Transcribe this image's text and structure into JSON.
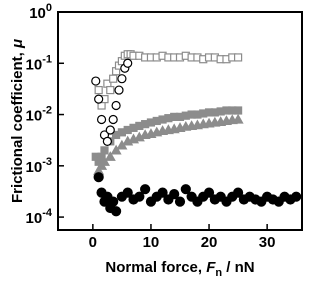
{
  "chart_data": {
    "type": "scatter",
    "log_y": true,
    "xlabel": {
      "text": "Normal force, ",
      "symbol": "F",
      "subscript": "n",
      "unit": " / nN"
    },
    "ylabel": {
      "text": "Frictional coefficient, ",
      "symbol": "μ"
    },
    "xlim": [
      -6,
      36
    ],
    "xticks": [
      0,
      10,
      20,
      30
    ],
    "ylim": [
      5.6e-05,
      1
    ],
    "yticks": [
      {
        "value": 1,
        "label": "10",
        "exponent": "0"
      },
      {
        "value": 0.1,
        "label": "10",
        "exponent": "-1"
      },
      {
        "value": 0.01,
        "label": "10",
        "exponent": "-2"
      },
      {
        "value": 0.001,
        "label": "10",
        "exponent": "-3"
      },
      {
        "value": 0.0001,
        "label": "10",
        "exponent": "-4"
      }
    ],
    "series": [
      {
        "marker": "square",
        "filled": true,
        "color": "#8c8c8c",
        "x": [
          0.5,
          1,
          1.5,
          2,
          3,
          4,
          5,
          6,
          7,
          8,
          9,
          10,
          11,
          12,
          13,
          14,
          15,
          16,
          17,
          18,
          19,
          20,
          21,
          22,
          23,
          24,
          25
        ],
        "values": [
          0.0015,
          0.0012,
          0.0015,
          0.002,
          0.003,
          0.004,
          0.0045,
          0.005,
          0.0055,
          0.006,
          0.0065,
          0.007,
          0.0075,
          0.008,
          0.0085,
          0.009,
          0.009,
          0.0095,
          0.01,
          0.01,
          0.0105,
          0.011,
          0.011,
          0.0115,
          0.012,
          0.012,
          0.012
        ]
      },
      {
        "marker": "triangle",
        "filled": true,
        "color": "#8c8c8c",
        "x": [
          1,
          1.5,
          2,
          3,
          4,
          5,
          6,
          7,
          8,
          9,
          10,
          11,
          12,
          13,
          14,
          15,
          16,
          17,
          18,
          19,
          20,
          21,
          22,
          23,
          24,
          25
        ],
        "values": [
          0.0008,
          0.001,
          0.0012,
          0.0015,
          0.002,
          0.0025,
          0.003,
          0.0033,
          0.0036,
          0.004,
          0.0042,
          0.0045,
          0.0048,
          0.005,
          0.0052,
          0.0055,
          0.0058,
          0.006,
          0.0062,
          0.0065,
          0.0067,
          0.007,
          0.0072,
          0.0075,
          0.0078,
          0.008
        ]
      },
      {
        "marker": "square",
        "filled": false,
        "color": "#8c8c8c",
        "x": [
          1,
          1.5,
          2,
          2.5,
          3,
          3.5,
          4,
          4.5,
          5,
          5.5,
          6,
          6.5,
          7,
          8,
          9,
          10,
          11,
          12,
          13,
          14,
          15,
          16,
          17,
          18,
          19,
          20,
          21,
          22,
          23,
          24,
          25
        ],
        "values": [
          0.03,
          0.015,
          0.02,
          0.04,
          0.03,
          0.05,
          0.07,
          0.09,
          0.11,
          0.14,
          0.15,
          0.15,
          0.14,
          0.14,
          0.13,
          0.13,
          0.13,
          0.14,
          0.13,
          0.13,
          0.13,
          0.14,
          0.13,
          0.13,
          0.12,
          0.13,
          0.13,
          0.12,
          0.12,
          0.13,
          0.13
        ]
      },
      {
        "marker": "circle",
        "filled": false,
        "color": "#000000",
        "x": [
          0.5,
          1,
          1.5,
          2,
          2.5,
          3,
          3.5,
          4,
          4.5,
          5,
          5.5,
          6
        ],
        "values": [
          0.045,
          0.02,
          0.008,
          0.004,
          0.003,
          0.005,
          0.008,
          0.015,
          0.03,
          0.05,
          0.08,
          0.1
        ]
      },
      {
        "marker": "circle",
        "filled": true,
        "color": "#000000",
        "x": [
          1,
          1.5,
          2,
          2.5,
          3,
          3.5,
          4,
          5,
          6,
          7,
          8,
          9,
          10,
          11,
          12,
          13,
          14,
          15,
          16,
          17,
          18,
          19,
          20,
          21,
          22,
          23,
          24,
          25,
          26,
          27,
          28,
          29,
          30,
          31,
          32,
          33,
          34,
          35
        ],
        "values": [
          0.0006,
          0.0003,
          0.0002,
          0.00025,
          0.00015,
          0.0002,
          0.00013,
          0.00025,
          0.0003,
          0.00022,
          0.00025,
          0.00035,
          0.0002,
          0.00025,
          0.0003,
          0.00022,
          0.00028,
          0.0002,
          0.00035,
          0.00025,
          0.0002,
          0.00025,
          0.0003,
          0.00022,
          0.00025,
          0.0002,
          0.00025,
          0.0003,
          0.00022,
          0.00025,
          0.00022,
          0.0002,
          0.00025,
          0.00022,
          0.0002,
          0.00025,
          0.00022,
          0.00025
        ]
      }
    ]
  }
}
